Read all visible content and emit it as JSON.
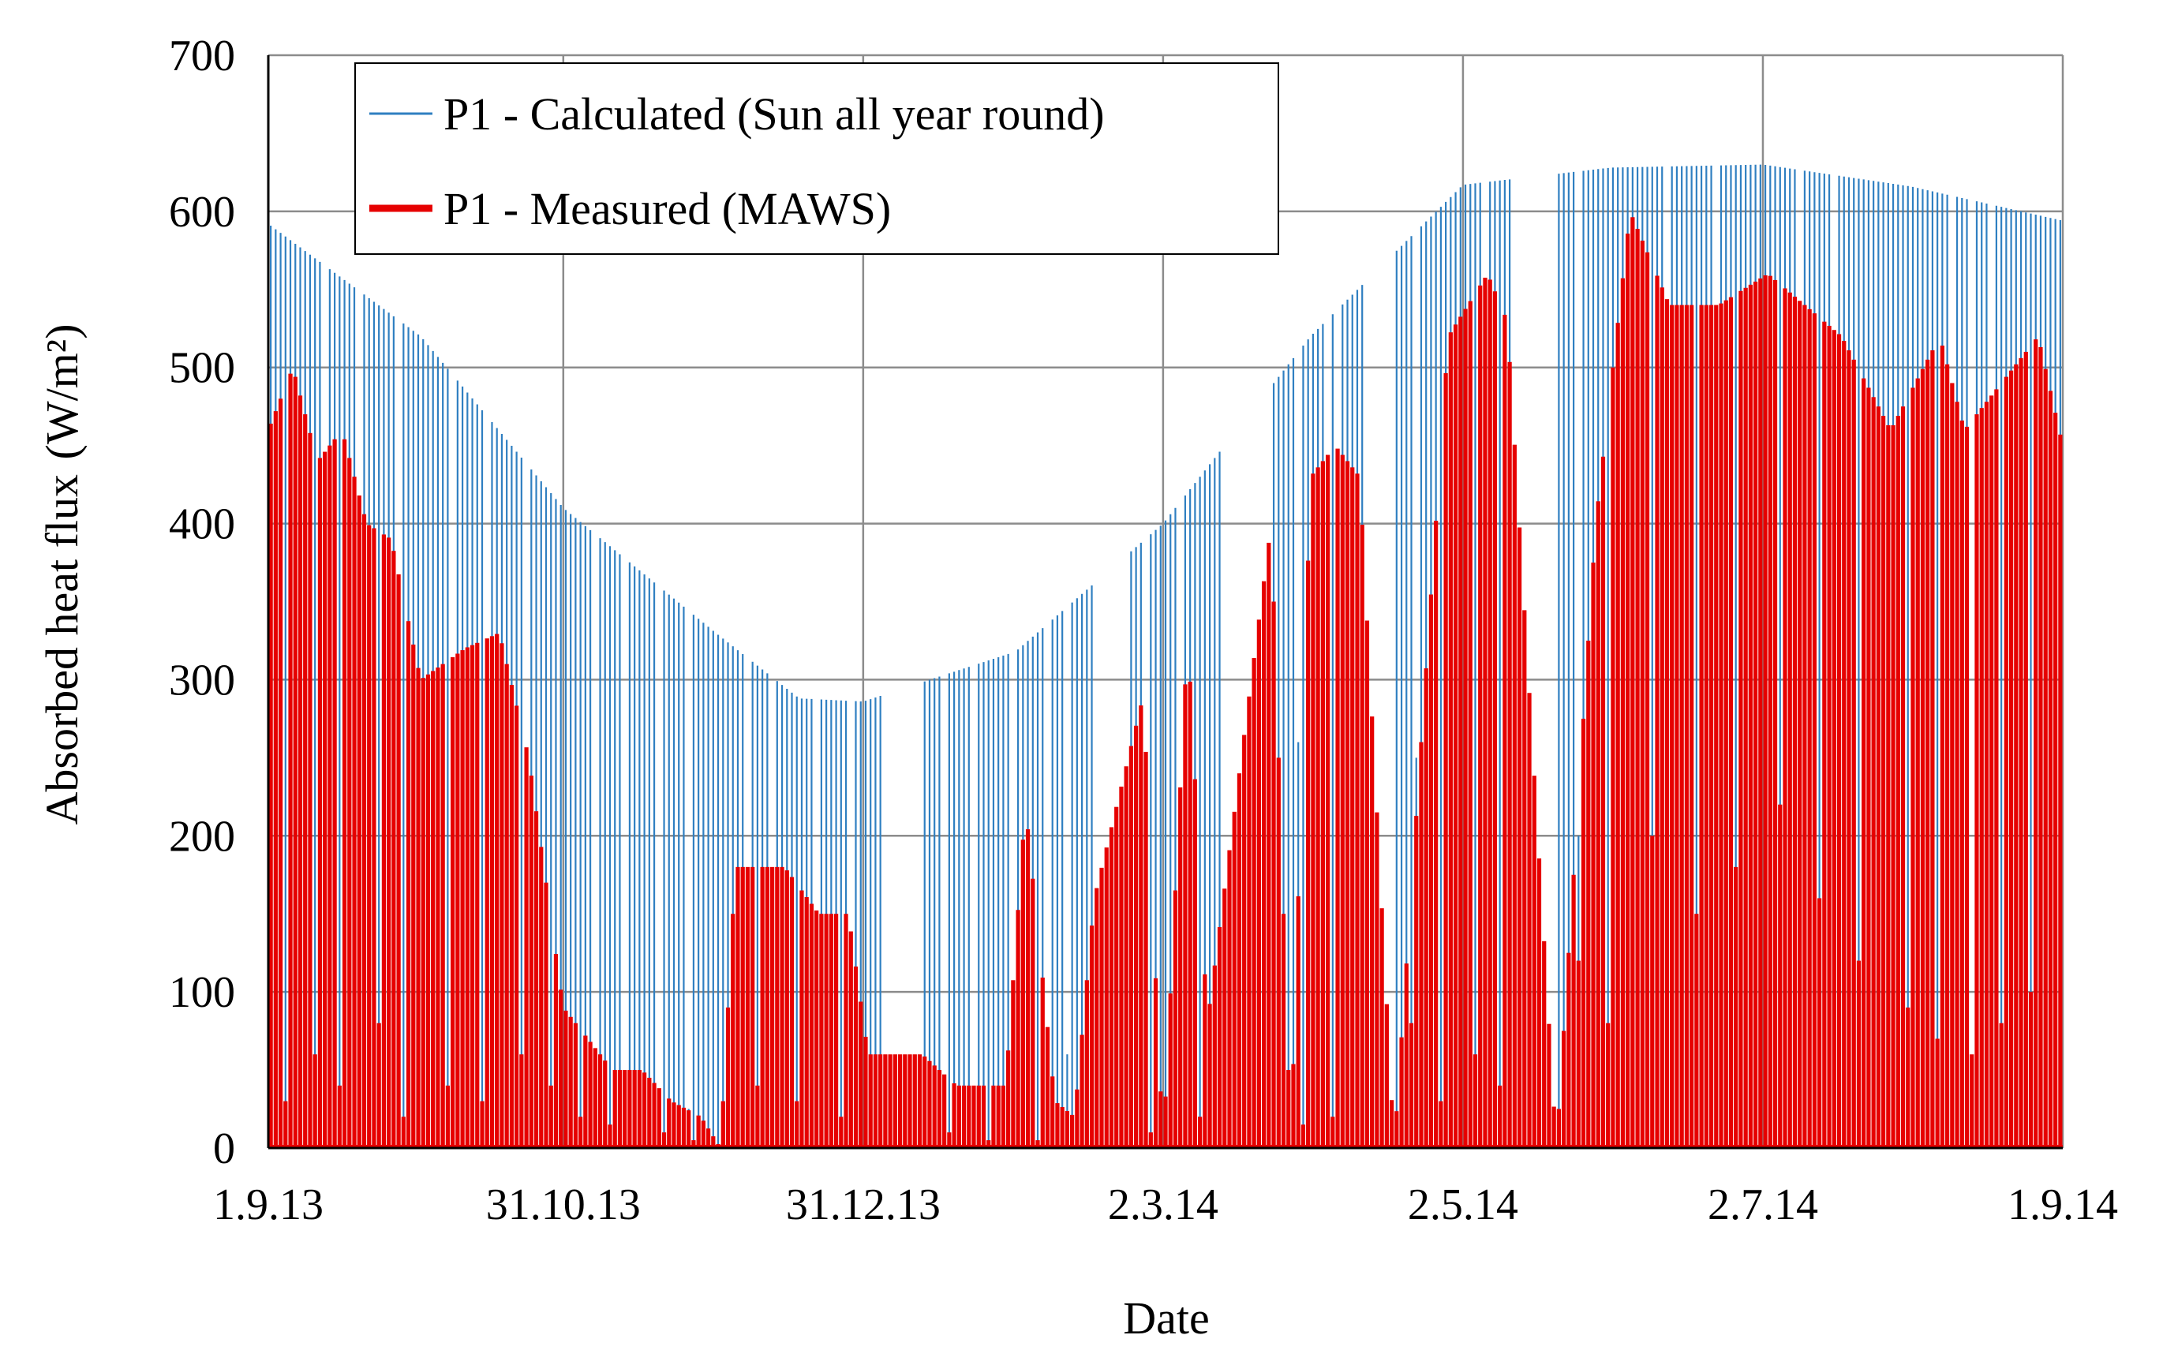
{
  "chart_data": {
    "type": "bar",
    "title": "",
    "xlabel": "Date",
    "ylabel": "Absorbed heat flux",
    "ylabel_unit": "(W/m²)",
    "ylim": [
      0,
      700
    ],
    "y_ticks": [
      "0",
      "100",
      "200",
      "300",
      "400",
      "500",
      "600",
      "700"
    ],
    "x_tick_labels": [
      "1.9.13",
      "31.10.13",
      "31.12.13",
      "2.3.14",
      "2.5.14",
      "2.7.14",
      "1.9.14"
    ],
    "x_tick_days": [
      0,
      60,
      121,
      182,
      243,
      304,
      365
    ],
    "grid": true,
    "legend_position": "top-left",
    "series": [
      {
        "name": "P1 - Calculated (Sun all year round)",
        "color": "#2f7fc1",
        "envelope_days": [
          0,
          31,
          60,
          91,
          108,
          121,
          152,
          182,
          212,
          243,
          273,
          304,
          334,
          365
        ],
        "envelope_values": [
          592,
          520,
          410,
          330,
          288,
          286,
          318,
          400,
          520,
          617,
          628,
          630,
          616,
          594
        ],
        "data_gaps_days": [
          [
            125,
            133
          ],
          [
            168,
            175
          ],
          [
            194,
            204
          ],
          [
            217,
            218
          ],
          [
            223,
            229
          ],
          [
            253,
            262
          ]
        ],
        "dip_days": [
          11,
          18,
          26,
          37,
          44,
          52,
          66,
          72,
          79,
          85,
          97,
          102,
          111,
          118,
          137,
          143,
          151,
          158,
          162,
          178,
          185,
          209,
          215,
          233,
          247,
          266,
          284,
          294,
          311,
          318,
          342,
          346,
          350
        ],
        "dip_values": [
          95,
          40,
          250,
          55,
          210,
          80,
          60,
          30,
          20,
          25,
          70,
          60,
          120,
          45,
          35,
          20,
          60,
          25,
          60,
          100,
          140,
          260,
          160,
          250,
          25,
          200,
          300,
          310,
          200,
          220,
          75,
          8,
          200
        ]
      },
      {
        "name": "P1 - Measured (MAWS)",
        "color": "#e60000",
        "envelope_days": [
          0,
          5,
          10,
          15,
          20,
          25,
          31,
          40,
          47,
          53,
          60,
          70,
          76,
          82,
          88,
          92,
          95,
          105,
          112,
          118,
          122,
          133,
          140,
          150,
          154,
          160,
          164,
          168,
          178,
          182,
          187,
          191,
          204,
          208,
          212,
          217,
          222,
          229,
          240,
          248,
          252,
          262,
          270,
          277,
          285,
          295,
          305,
          320,
          330,
          340,
          345,
          350,
          360,
          365
        ],
        "envelope_values": [
          460,
          500,
          440,
          460,
          400,
          390,
          300,
          320,
          330,
          250,
          90,
          50,
          50,
          30,
          20,
          0,
          180,
          180,
          150,
          150,
          60,
          60,
          40,
          40,
          220,
          30,
          20,
          160,
          290,
          0,
          330,
          80,
          400,
          0,
          430,
          450,
          430,
          0,
          520,
          560,
          530,
          0,
          400,
          600,
          540,
          540,
          560,
          520,
          460,
          520,
          460,
          480,
          520,
          450
        ],
        "drop_days": [
          3,
          9,
          14,
          22,
          27,
          36,
          43,
          51,
          57,
          63,
          69,
          80,
          86,
          99,
          107,
          116,
          138,
          146,
          156,
          179,
          189,
          210,
          216,
          232,
          238,
          245,
          250,
          266,
          272,
          281,
          290,
          298,
          307,
          315,
          323,
          333,
          339,
          346,
          352,
          358
        ],
        "drop_values": [
          30,
          60,
          40,
          80,
          20,
          40,
          30,
          60,
          40,
          20,
          15,
          10,
          5,
          40,
          30,
          20,
          10,
          5,
          5,
          10,
          20,
          15,
          20,
          80,
          30,
          60,
          40,
          120,
          80,
          200,
          150,
          180,
          220,
          160,
          120,
          90,
          70,
          60,
          80,
          100
        ]
      }
    ]
  }
}
